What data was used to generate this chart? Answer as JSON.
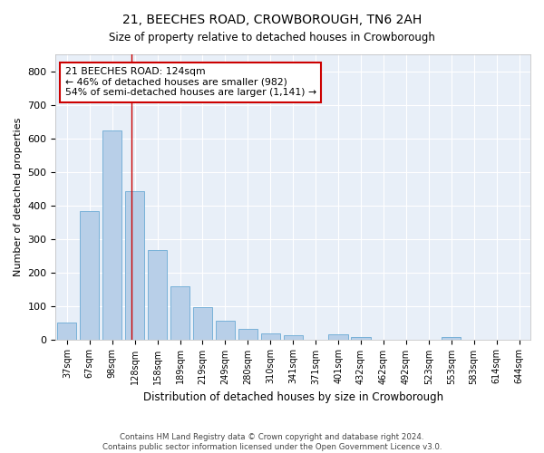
{
  "title1": "21, BEECHES ROAD, CROWBOROUGH, TN6 2AH",
  "title2": "Size of property relative to detached houses in Crowborough",
  "xlabel": "Distribution of detached houses by size in Crowborough",
  "ylabel": "Number of detached properties",
  "bar_labels": [
    "37sqm",
    "67sqm",
    "98sqm",
    "128sqm",
    "158sqm",
    "189sqm",
    "219sqm",
    "249sqm",
    "280sqm",
    "310sqm",
    "341sqm",
    "371sqm",
    "401sqm",
    "432sqm",
    "462sqm",
    "492sqm",
    "523sqm",
    "553sqm",
    "583sqm",
    "614sqm",
    "644sqm"
  ],
  "bar_values": [
    50,
    382,
    624,
    441,
    267,
    157,
    96,
    55,
    30,
    18,
    11,
    0,
    15,
    8,
    0,
    0,
    0,
    7,
    0,
    0,
    0
  ],
  "bar_color": "#b8cfe8",
  "bar_edgecolor": "#6aaad4",
  "background_color": "#e8eff8",
  "grid_color": "#ffffff",
  "annotation_line_label": "21 BEECHES ROAD: 124sqm",
  "annotation_text1": "← 46% of detached houses are smaller (982)",
  "annotation_text2": "54% of semi-detached houses are larger (1,141) →",
  "annotation_box_facecolor": "#ffffff",
  "annotation_box_edgecolor": "#cc0000",
  "vline_color": "#cc0000",
  "ylim": [
    0,
    850
  ],
  "yticks": [
    0,
    100,
    200,
    300,
    400,
    500,
    600,
    700,
    800
  ],
  "footer1": "Contains HM Land Registry data © Crown copyright and database right 2024.",
  "footer2": "Contains public sector information licensed under the Open Government Licence v3.0."
}
